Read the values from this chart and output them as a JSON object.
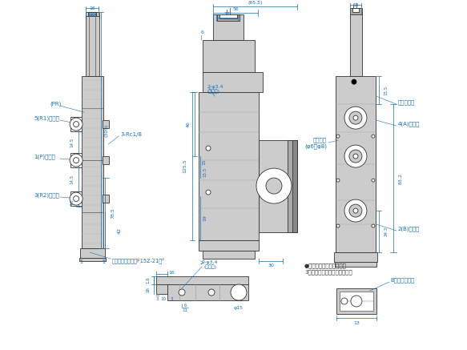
{
  "bg_color": "#ffffff",
  "line_color": "#333333",
  "dim_color": "#1a6faf",
  "gray_light": "#cccccc",
  "gray_med": "#aaaaaa",
  "gray_dark": "#888888",
  "annotations": {
    "pr_port": "(PR)",
    "r1_port": "5(R1)ポート",
    "p_port": "1(P)ポート",
    "r2_port": "3(R2)ポート",
    "rc18": "3-Rc1/8",
    "bracket": "取付ブラケット（F15Z-21）²",
    "hole_center": "2-φ3.4\n(取付穴)",
    "ryoyo": "両用継手\n(φ6・φ8)",
    "tedo": "手動ボタン",
    "a_port": "4(A)ポート",
    "b_port": "2(B)ポート",
    "double_sol": "●ダブルソレノイドおよび\n3ポジション、タンデムの場合",
    "b_tedo": "B側手動ボタン",
    "phi15": "φ15"
  }
}
